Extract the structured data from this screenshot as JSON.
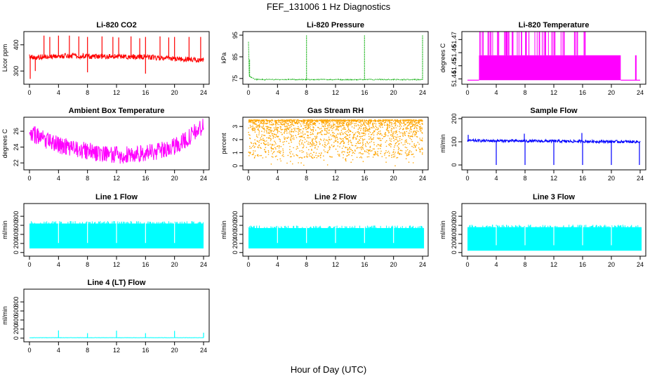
{
  "figure": {
    "title": "FEF_131006  1 Hz Diagnostics",
    "xlabel": "Hour of Day (UTC)"
  },
  "chart_data": [
    {
      "type": "line",
      "title": "Li-820 CO2",
      "ylabel": "Licor ppm",
      "color": "#ff0000",
      "xlim": [
        0,
        24
      ],
      "xticks": [
        "0",
        "4",
        "8",
        "12",
        "16",
        "20",
        "24"
      ],
      "ylim": [
        255,
        445
      ],
      "yticks": [
        300,
        400
      ],
      "base": [
        [
          0,
          355
        ],
        [
          1,
          352
        ],
        [
          2,
          356
        ],
        [
          4,
          357
        ],
        [
          6,
          358
        ],
        [
          8,
          356
        ],
        [
          10,
          355
        ],
        [
          12,
          355
        ],
        [
          14,
          354
        ],
        [
          16,
          355
        ],
        [
          18,
          350
        ],
        [
          20,
          347
        ],
        [
          22,
          344
        ],
        [
          24,
          342
        ]
      ],
      "noise": 10,
      "spikes": [
        [
          0.1,
          270
        ],
        [
          0.8,
          300
        ],
        [
          2.0,
          435
        ],
        [
          2.8,
          430
        ],
        [
          4.0,
          435
        ],
        [
          5.5,
          435
        ],
        [
          6.8,
          432
        ],
        [
          8.0,
          295
        ],
        [
          8.0,
          430
        ],
        [
          10.0,
          432
        ],
        [
          11.5,
          430
        ],
        [
          12.3,
          428
        ],
        [
          14.0,
          432
        ],
        [
          15.2,
          425
        ],
        [
          16.0,
          290
        ],
        [
          16.0,
          430
        ],
        [
          18.0,
          432
        ],
        [
          19.2,
          428
        ],
        [
          20.0,
          430
        ],
        [
          22.0,
          430
        ],
        [
          23.6,
          430
        ]
      ]
    },
    {
      "type": "line",
      "title": "Li-820 Pressure",
      "ylabel": "kPa",
      "color": "#00aa00",
      "xlim": [
        0,
        24
      ],
      "xticks": [
        "0",
        "4",
        "8",
        "12",
        "16",
        "20",
        "24"
      ],
      "ylim": [
        73,
        96
      ],
      "yticks": [
        75,
        85,
        95
      ],
      "base": [
        [
          0,
          92
        ],
        [
          0.1,
          76
        ],
        [
          1.0,
          74.5
        ],
        [
          24,
          74.5
        ]
      ],
      "noise": 0.2,
      "spikes": [
        [
          0.15,
          84
        ],
        [
          8.0,
          95
        ],
        [
          16.0,
          95
        ],
        [
          24.0,
          95
        ]
      ]
    },
    {
      "type": "line",
      "title": "Li-820 Temperature",
      "ylabel": "degrees C",
      "color": "#ff00ff",
      "xlim": [
        0,
        24
      ],
      "xticks": [
        "0",
        "4",
        "8",
        "12",
        "16",
        "20",
        "24"
      ],
      "ylim": [
        51.437,
        51.475
      ],
      "yticks": [
        51.44,
        51.45,
        51.46,
        51.47
      ],
      "ytick_labels": [
        "51.44",
        "51.45",
        "51.46",
        "51.47"
      ],
      "levels": [
        51.439,
        51.458,
        51.478
      ],
      "band": [
        1.6,
        21.3
      ],
      "extra_band": [
        23.3,
        23.5
      ]
    },
    {
      "type": "line",
      "title": "Ambient Box Temperature",
      "ylabel": "degrees C",
      "color": "#ff00ff",
      "xlim": [
        0,
        24
      ],
      "xticks": [
        "0",
        "4",
        "8",
        "12",
        "16",
        "20",
        "24"
      ],
      "ylim": [
        21.3,
        27.6
      ],
      "yticks": [
        22,
        24,
        26
      ],
      "base": [
        [
          0,
          25.9
        ],
        [
          2,
          25.0
        ],
        [
          4,
          24.3
        ],
        [
          6,
          23.8
        ],
        [
          8,
          23.5
        ],
        [
          10,
          23.2
        ],
        [
          12,
          23.0
        ],
        [
          14,
          23.0
        ],
        [
          16,
          23.2
        ],
        [
          18,
          23.5
        ],
        [
          20,
          24.1
        ],
        [
          22,
          25.2
        ],
        [
          23,
          26.0
        ],
        [
          24,
          26.6
        ]
      ],
      "noise": 1.1
    },
    {
      "type": "scatter",
      "title": "Gas Stream RH",
      "ylabel": "percent",
      "color": "#ffa500",
      "xlim": [
        0,
        24
      ],
      "xticks": [
        "0",
        "4",
        "8",
        "12",
        "16",
        "20",
        "24"
      ],
      "ylim": [
        -0.2,
        3.6
      ],
      "yticks": [
        0,
        1,
        2,
        3
      ],
      "range": [
        0.6,
        3.5
      ]
    },
    {
      "type": "line",
      "title": "Sample Flow",
      "ylabel": "ml/min",
      "color": "#0000ff",
      "xlim": [
        0,
        24
      ],
      "xticks": [
        "0",
        "4",
        "8",
        "12",
        "16",
        "20",
        "24"
      ],
      "ylim": [
        -15,
        200
      ],
      "yticks": [
        0,
        100,
        200
      ],
      "base": [
        [
          0,
          105
        ],
        [
          24,
          100
        ]
      ],
      "noise": 6,
      "spikes": [
        [
          0.1,
          130
        ],
        [
          4.0,
          0
        ],
        [
          7.9,
          135
        ],
        [
          8.0,
          0
        ],
        [
          12.0,
          0
        ],
        [
          15.9,
          138
        ],
        [
          16.0,
          0
        ],
        [
          20.0,
          0
        ],
        [
          23.9,
          0
        ]
      ]
    },
    {
      "type": "area",
      "title": "Line 1 Flow",
      "ylabel": "ml/min",
      "color": "#00ffff",
      "xlim": [
        0,
        24
      ],
      "xticks": [
        "0",
        "4",
        "8",
        "12",
        "16",
        "20",
        "24"
      ],
      "ylim": [
        -50,
        1050
      ],
      "yticks": [
        0,
        200,
        400,
        600,
        800
      ],
      "upper": 640,
      "lower": 90,
      "gaps": [
        4.0,
        8.0,
        12.0,
        16.0,
        20.0
      ],
      "end": 24
    },
    {
      "type": "area",
      "title": "Line 2 Flow",
      "ylabel": "ml/min",
      "color": "#00ffff",
      "xlim": [
        0,
        24
      ],
      "xticks": [
        "0",
        "4",
        "8",
        "12",
        "16",
        "20",
        "24"
      ],
      "ylim": [
        -50,
        1050
      ],
      "yticks": [
        0,
        200,
        400,
        600,
        800
      ],
      "upper": 540,
      "lower": 90,
      "gaps": [
        4.0,
        8.0,
        12.0,
        16.0,
        20.0
      ],
      "end": 24.2
    },
    {
      "type": "area",
      "title": "Line 3 Flow",
      "ylabel": "ml/min",
      "color": "#00ffff",
      "xlim": [
        0,
        24
      ],
      "xticks": [
        "0",
        "4",
        "8",
        "12",
        "16",
        "20",
        "24"
      ],
      "ylim": [
        -50,
        1050
      ],
      "yticks": [
        0,
        200,
        400,
        600,
        800
      ],
      "upper": 560,
      "lower": 40,
      "gaps": [
        4.0,
        8.0,
        12.0,
        16.0,
        20.0
      ],
      "end": 24.2
    },
    {
      "type": "line",
      "title": "Line 4 (LT) Flow",
      "ylabel": "ml/min",
      "color": "#00ffff",
      "xlim": [
        0,
        24
      ],
      "xticks": [
        "0",
        "4",
        "8",
        "12",
        "16",
        "20",
        "24"
      ],
      "ylim": [
        -50,
        1050
      ],
      "yticks": [
        0,
        200,
        400,
        600,
        800
      ],
      "base": [
        [
          0,
          10
        ],
        [
          24,
          10
        ]
      ],
      "noise": 3,
      "spikes": [
        [
          4.0,
          170
        ],
        [
          8.0,
          110
        ],
        [
          12.0,
          165
        ],
        [
          16.0,
          110
        ],
        [
          20.0,
          160
        ],
        [
          24.0,
          120
        ]
      ]
    }
  ]
}
